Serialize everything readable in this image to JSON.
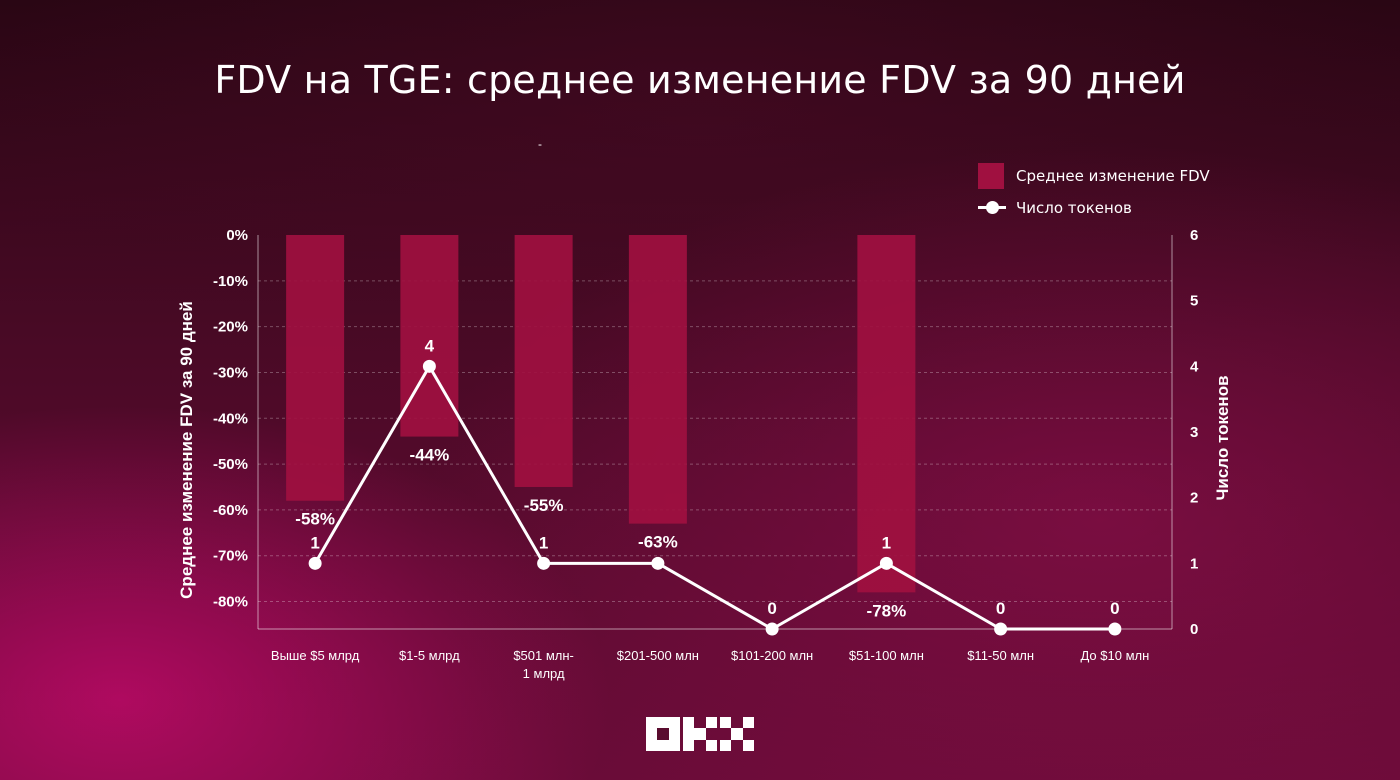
{
  "title": "FDV на TGE: среднее изменение FDV за 90 дней",
  "subtitle_mark": "-",
  "legend": {
    "bars_label": "Среднее изменение FDV",
    "line_label": "Число токенов"
  },
  "colors": {
    "bar": "#a01040",
    "line": "#ffffff",
    "text": "#ffffff"
  },
  "brand": "OKX",
  "chart_data": {
    "type": "bar",
    "categories": [
      "Выше $5 млрд",
      "$1-5 млрд",
      "$501 млн-\n1 млрд",
      "$201-500 млн",
      "$101-200 млн",
      "$51-100 млн",
      "$11-50 млн",
      "До $10 млн"
    ],
    "series": [
      {
        "name": "Среднее изменение FDV",
        "type": "bar",
        "axis": "left",
        "values": [
          -58,
          -44,
          -55,
          -63,
          null,
          -78,
          null,
          null
        ],
        "labels": [
          "-58%",
          "-44%",
          "-55%",
          "-63%",
          "",
          "-78%",
          "",
          ""
        ]
      },
      {
        "name": "Число токенов",
        "type": "line",
        "axis": "right",
        "values": [
          1,
          4,
          1,
          1,
          0,
          1,
          0,
          0
        ],
        "labels": [
          "1",
          "4",
          "1",
          "",
          "0",
          "1",
          "0",
          "0"
        ]
      }
    ],
    "y_left": {
      "label": "Среднее изменение FDV за 90 дней",
      "range": [
        -86,
        0
      ],
      "ticks": [
        0,
        -10,
        -20,
        -30,
        -40,
        -50,
        -60,
        -70,
        -80
      ],
      "tick_labels": [
        "0%",
        "-10%",
        "-20%",
        "-30%",
        "-40%",
        "-50%",
        "-60%",
        "-70%",
        "-80%"
      ]
    },
    "y_right": {
      "label": "Число токенов",
      "range": [
        0,
        6
      ],
      "ticks": [
        0,
        1,
        2,
        3,
        4,
        5,
        6
      ],
      "tick_labels": [
        "0",
        "1",
        "2",
        "3",
        "4",
        "5",
        "6"
      ]
    },
    "grid": true,
    "legend_position": "top-right"
  }
}
